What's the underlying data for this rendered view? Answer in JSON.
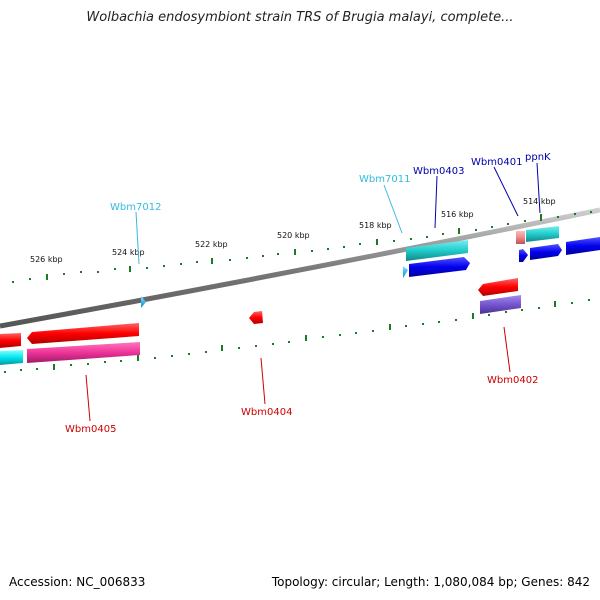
{
  "title": "Wolbachia endosymbiont strain TRS of Brugia malayi, complete...",
  "footer": {
    "accession": "Accession: NC_006833",
    "summary": "Topology: circular; Length: 1,080,084 bp; Genes: 842"
  },
  "tick_labels": [
    "526 kbp",
    "524 kbp",
    "522 kbp",
    "520 kbp",
    "518 kbp",
    "516 kbp",
    "514 kbp"
  ],
  "gene_labels": [
    {
      "name": "Wbm7012",
      "color": "#33bbdd"
    },
    {
      "name": "Wbm7011",
      "color": "#33bbdd"
    },
    {
      "name": "Wbm0403",
      "color": "#0000aa"
    },
    {
      "name": "Wbm0401",
      "color": "#0000aa"
    },
    {
      "name": "ppnK",
      "color": "#0000aa"
    },
    {
      "name": "Wbm0405",
      "color": "#cc0000"
    },
    {
      "name": "Wbm0404",
      "color": "#cc0000"
    },
    {
      "name": "Wbm0402",
      "color": "#cc0000"
    }
  ],
  "colors": {
    "backbone": "#888888",
    "ticks": "#1e7a1e",
    "forward_red": "#ff0000",
    "forward_magenta": "#ee3399",
    "reverse_blue": "#0000ee",
    "teal": "#22cccc",
    "light_blue": "#33bbee",
    "purple": "#7755cc",
    "pink": "#ee8888"
  }
}
